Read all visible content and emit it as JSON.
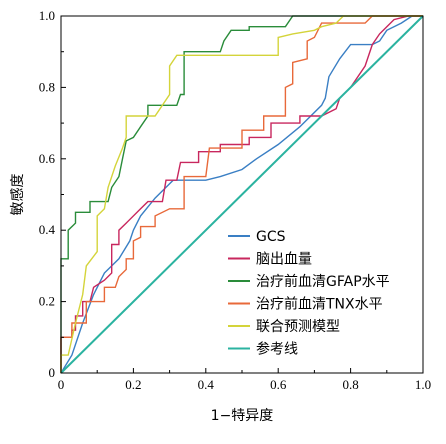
{
  "chart_data": {
    "type": "line",
    "title": "",
    "xlabel": "1−特异度",
    "ylabel": "敏感度",
    "xlim": [
      0,
      1
    ],
    "ylim": [
      0,
      1
    ],
    "x_ticks": [
      "0",
      "0.2",
      "0.4",
      "0.6",
      "0.8",
      "1.0"
    ],
    "y_ticks": [
      "0",
      "0.2",
      "0.4",
      "0.6",
      "0.8",
      "1.0"
    ],
    "grid": false,
    "legend_position": "bottom-right",
    "series": [
      {
        "name": "GCS",
        "color": "#3a7fc4",
        "points": [
          [
            0,
            0
          ],
          [
            0.03,
            0.05
          ],
          [
            0.06,
            0.14
          ],
          [
            0.09,
            0.22
          ],
          [
            0.12,
            0.28
          ],
          [
            0.16,
            0.32
          ],
          [
            0.19,
            0.37
          ],
          [
            0.2,
            0.4
          ],
          [
            0.22,
            0.44
          ],
          [
            0.26,
            0.49
          ],
          [
            0.3,
            0.53
          ],
          [
            0.31,
            0.54
          ],
          [
            0.4,
            0.54
          ],
          [
            0.44,
            0.55
          ],
          [
            0.5,
            0.57
          ],
          [
            0.54,
            0.6
          ],
          [
            0.6,
            0.64
          ],
          [
            0.66,
            0.69
          ],
          [
            0.72,
            0.75
          ],
          [
            0.73,
            0.77
          ],
          [
            0.74,
            0.83
          ],
          [
            0.77,
            0.88
          ],
          [
            0.8,
            0.92
          ],
          [
            0.86,
            0.92
          ],
          [
            0.88,
            0.93
          ],
          [
            0.9,
            0.96
          ],
          [
            0.94,
            0.98
          ],
          [
            0.97,
            1.0
          ],
          [
            1.0,
            1.0
          ]
        ]
      },
      {
        "name": "脑出血量",
        "color": "#c8275e",
        "points": [
          [
            0,
            0
          ],
          [
            0,
            0.1
          ],
          [
            0.03,
            0.1
          ],
          [
            0.03,
            0.12
          ],
          [
            0.04,
            0.12
          ],
          [
            0.04,
            0.16
          ],
          [
            0.06,
            0.16
          ],
          [
            0.06,
            0.2
          ],
          [
            0.08,
            0.2
          ],
          [
            0.09,
            0.24
          ],
          [
            0.12,
            0.26
          ],
          [
            0.14,
            0.28
          ],
          [
            0.14,
            0.36
          ],
          [
            0.16,
            0.36
          ],
          [
            0.16,
            0.4
          ],
          [
            0.18,
            0.42
          ],
          [
            0.22,
            0.46
          ],
          [
            0.24,
            0.48
          ],
          [
            0.28,
            0.48
          ],
          [
            0.29,
            0.54
          ],
          [
            0.32,
            0.54
          ],
          [
            0.33,
            0.59
          ],
          [
            0.38,
            0.59
          ],
          [
            0.38,
            0.62
          ],
          [
            0.44,
            0.62
          ],
          [
            0.44,
            0.64
          ],
          [
            0.52,
            0.64
          ],
          [
            0.52,
            0.66
          ],
          [
            0.58,
            0.66
          ],
          [
            0.58,
            0.7
          ],
          [
            0.66,
            0.7
          ],
          [
            0.66,
            0.72
          ],
          [
            0.72,
            0.72
          ],
          [
            0.76,
            0.74
          ],
          [
            0.77,
            0.77
          ],
          [
            0.8,
            0.8
          ],
          [
            0.84,
            0.86
          ],
          [
            0.86,
            0.92
          ],
          [
            0.88,
            0.95
          ],
          [
            0.9,
            0.97
          ],
          [
            0.92,
            0.99
          ],
          [
            0.96,
            1.0
          ],
          [
            1.0,
            1.0
          ]
        ]
      },
      {
        "name": "治疗前血清GFAP水平",
        "color": "#2a8c3a",
        "points": [
          [
            0,
            0
          ],
          [
            0,
            0.32
          ],
          [
            0.02,
            0.32
          ],
          [
            0.02,
            0.4
          ],
          [
            0.04,
            0.42
          ],
          [
            0.04,
            0.45
          ],
          [
            0.08,
            0.45
          ],
          [
            0.08,
            0.48
          ],
          [
            0.13,
            0.48
          ],
          [
            0.14,
            0.52
          ],
          [
            0.16,
            0.55
          ],
          [
            0.17,
            0.6
          ],
          [
            0.18,
            0.65
          ],
          [
            0.2,
            0.66
          ],
          [
            0.22,
            0.69
          ],
          [
            0.24,
            0.72
          ],
          [
            0.24,
            0.75
          ],
          [
            0.32,
            0.75
          ],
          [
            0.33,
            0.78
          ],
          [
            0.34,
            0.78
          ],
          [
            0.34,
            0.9
          ],
          [
            0.44,
            0.9
          ],
          [
            0.45,
            0.93
          ],
          [
            0.47,
            0.96
          ],
          [
            0.52,
            0.96
          ],
          [
            0.52,
            0.97
          ],
          [
            0.62,
            0.97
          ],
          [
            0.64,
            1.0
          ],
          [
            1.0,
            1.0
          ]
        ]
      },
      {
        "name": "治疗前血清TNX水平",
        "color": "#e8693a",
        "points": [
          [
            0,
            0
          ],
          [
            0,
            0.1
          ],
          [
            0.03,
            0.1
          ],
          [
            0.03,
            0.14
          ],
          [
            0.07,
            0.14
          ],
          [
            0.07,
            0.2
          ],
          [
            0.12,
            0.2
          ],
          [
            0.12,
            0.24
          ],
          [
            0.15,
            0.24
          ],
          [
            0.16,
            0.27
          ],
          [
            0.18,
            0.29
          ],
          [
            0.18,
            0.32
          ],
          [
            0.2,
            0.32
          ],
          [
            0.2,
            0.37
          ],
          [
            0.22,
            0.38
          ],
          [
            0.22,
            0.41
          ],
          [
            0.26,
            0.41
          ],
          [
            0.26,
            0.44
          ],
          [
            0.3,
            0.46
          ],
          [
            0.34,
            0.46
          ],
          [
            0.34,
            0.55
          ],
          [
            0.4,
            0.55
          ],
          [
            0.41,
            0.63
          ],
          [
            0.5,
            0.63
          ],
          [
            0.5,
            0.68
          ],
          [
            0.56,
            0.68
          ],
          [
            0.56,
            0.72
          ],
          [
            0.62,
            0.72
          ],
          [
            0.62,
            0.8
          ],
          [
            0.64,
            0.81
          ],
          [
            0.64,
            0.87
          ],
          [
            0.68,
            0.88
          ],
          [
            0.68,
            0.93
          ],
          [
            0.7,
            0.94
          ],
          [
            0.72,
            0.98
          ],
          [
            0.84,
            0.98
          ],
          [
            0.86,
            1.0
          ],
          [
            1.0,
            1.0
          ]
        ]
      },
      {
        "name": "联合预测模型",
        "color": "#d4d43a",
        "points": [
          [
            0,
            0
          ],
          [
            0,
            0.05
          ],
          [
            0.02,
            0.05
          ],
          [
            0.04,
            0.14
          ],
          [
            0.06,
            0.22
          ],
          [
            0.07,
            0.3
          ],
          [
            0.1,
            0.34
          ],
          [
            0.1,
            0.44
          ],
          [
            0.12,
            0.46
          ],
          [
            0.13,
            0.52
          ],
          [
            0.15,
            0.58
          ],
          [
            0.17,
            0.63
          ],
          [
            0.18,
            0.66
          ],
          [
            0.18,
            0.72
          ],
          [
            0.26,
            0.72
          ],
          [
            0.3,
            0.78
          ],
          [
            0.3,
            0.86
          ],
          [
            0.32,
            0.89
          ],
          [
            0.6,
            0.89
          ],
          [
            0.6,
            0.94
          ],
          [
            0.64,
            0.95
          ],
          [
            0.7,
            0.96
          ],
          [
            0.72,
            0.97
          ],
          [
            0.76,
            0.98
          ],
          [
            0.78,
            1.0
          ],
          [
            1.0,
            1.0
          ]
        ]
      },
      {
        "name": "参考线",
        "color": "#2bb3a0",
        "points": [
          [
            0,
            0
          ],
          [
            1,
            1
          ]
        ]
      }
    ]
  }
}
